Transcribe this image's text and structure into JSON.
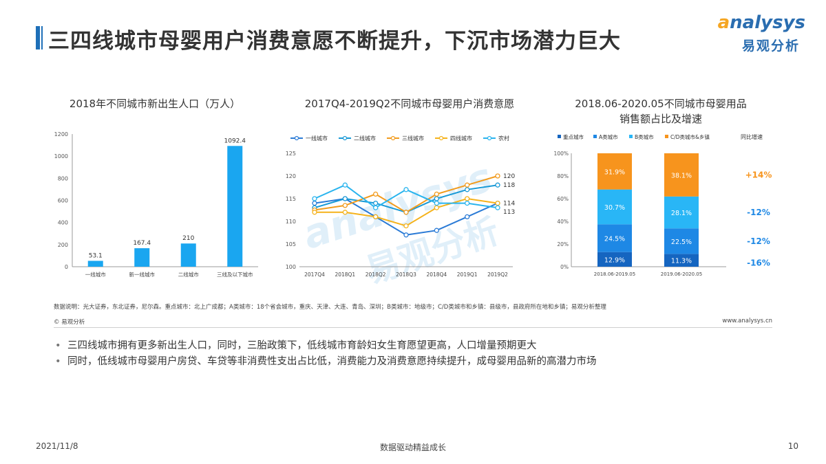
{
  "header": {
    "title": "三四线城市母婴用户消费意愿不断提升，下沉市场潜力巨大"
  },
  "logo": {
    "en": "nalysys",
    "en_initial": "a",
    "cn": "易观分析"
  },
  "watermark": {
    "en": "analysys",
    "cn": "易观分析"
  },
  "chart_data": [
    {
      "type": "bar",
      "title": "2018年不同城市新出生人口（万人）",
      "categories": [
        "一线城市",
        "新一线城市",
        "二线城市",
        "三线及以下城市"
      ],
      "values": [
        53.1,
        167.4,
        210,
        1092.4
      ],
      "value_labels": [
        "53.1",
        "167.4",
        "210",
        "1092.4"
      ],
      "ylim": [
        0,
        1200
      ],
      "yticks": [
        "0",
        "200",
        "400",
        "600",
        "800",
        "1000",
        "1200"
      ],
      "color": "#1aa6f0",
      "grid": false
    },
    {
      "type": "line",
      "title": "2017Q4-2019Q2不同城市母婴用户消费意愿",
      "x": [
        "2017Q4",
        "2018Q1",
        "2018Q2",
        "2018Q3",
        "2018Q4",
        "2019Q1",
        "2019Q2"
      ],
      "ylim": [
        100,
        125
      ],
      "yticks": [
        "100",
        "105",
        "110",
        "115",
        "120",
        "125"
      ],
      "series": [
        {
          "name": "一线城市",
          "color": "#2b7bd6",
          "values": [
            114,
            115,
            111,
            107,
            108,
            111,
            114
          ]
        },
        {
          "name": "二线城市",
          "color": "#1899d6",
          "values": [
            113,
            115,
            114,
            112,
            115,
            117,
            118
          ]
        },
        {
          "name": "三线城市",
          "color": "#f29b1d",
          "values": [
            112.5,
            113.5,
            116,
            112,
            116,
            118,
            120
          ]
        },
        {
          "name": "四线城市",
          "color": "#f5b21a",
          "values": [
            112,
            112,
            111,
            109,
            113,
            115,
            114
          ]
        },
        {
          "name": "农村",
          "color": "#29b4ee",
          "values": [
            115,
            118,
            113,
            117,
            114,
            114,
            113
          ]
        }
      ],
      "end_labels": [
        "120",
        "118",
        "114",
        "113"
      ],
      "legend": "top"
    },
    {
      "type": "bar",
      "stacked": true,
      "percent": true,
      "title": "2018.06-2020.05不同城市母婴用品销售额占比及增速",
      "title_lines": [
        "2018.06-2020.05不同城市母婴用品",
        "销售额占比及增速"
      ],
      "categories": [
        "2018.06-2019.05",
        "2019.06-2020.05"
      ],
      "yticks": [
        "0%",
        "20%",
        "40%",
        "60%",
        "80%",
        "100%"
      ],
      "series": [
        {
          "name": "重点城市",
          "color": "#1565c0",
          "values": [
            12.9,
            11.3
          ],
          "labels": [
            "12.9%",
            "11.3%"
          ],
          "growth": "-16%"
        },
        {
          "name": "A类城市",
          "color": "#1e88e5",
          "values": [
            24.5,
            22.5
          ],
          "labels": [
            "24.5%",
            "22.5%"
          ],
          "growth": "-12%"
        },
        {
          "name": "B类城市",
          "color": "#29b6f6",
          "values": [
            30.7,
            28.1
          ],
          "labels": [
            "30.7%",
            "28.1%"
          ],
          "growth": "-12%"
        },
        {
          "name": "C/D类城市&乡镇",
          "color": "#f7941d",
          "values": [
            31.9,
            38.1
          ],
          "labels": [
            "31.9%",
            "38.1%"
          ],
          "growth": "+14%"
        }
      ],
      "growth_header": "同比增速",
      "growth_colors": {
        "positive": "#f7941d",
        "negative": "#1e88e5"
      },
      "legend": "top"
    }
  ],
  "notes": {
    "data_note": "数据说明：光大证券，东北证券，尼尔森。重点城市：北上广成都；A类城市：18个省会城市，重庆、天津、大连、青岛、深圳；B类城市：地级市；C/D类城市和乡镇：县级市，县政府所在地和乡镇；易观分析整理",
    "source": "© 易观分析",
    "site": "www.analysys.cn"
  },
  "bullets": [
    "三四线城市拥有更多新出生人口，同时，三胎政策下，低线城市育龄妇女生育愿望更高，人口增量预期更大",
    "同时，低线城市母婴用户房贷、车贷等非消费性支出占比低，消费能力及消费意愿持续提升，成母婴用品新的高潜力市场"
  ],
  "footer": {
    "date": "2021/11/8",
    "slogan": "数据驱动精益成长",
    "page": "10"
  }
}
